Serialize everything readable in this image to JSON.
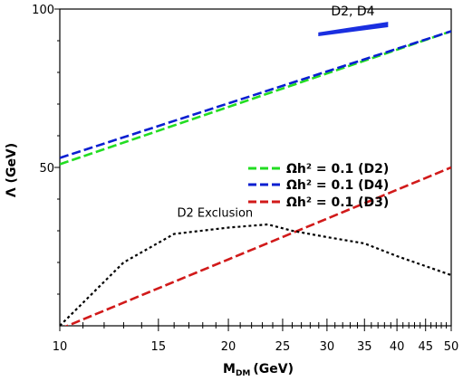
{
  "chart_data": {
    "type": "line",
    "xlabel_main": "M",
    "xlabel_sub": "DM",
    "xlabel_unit": "(GeV)",
    "ylabel": "Λ (GeV)",
    "xscale": "log",
    "xlim": [
      10,
      50
    ],
    "ylim": [
      0,
      100
    ],
    "xticks_major": [
      10,
      15,
      20,
      25,
      30,
      35,
      40,
      45,
      50
    ],
    "xtick_labels": [
      "10",
      "15",
      "20",
      "25",
      "30",
      "35",
      "40",
      "45",
      "50"
    ],
    "xticks_minor": [
      11,
      12,
      13,
      14,
      16,
      17,
      18,
      19,
      21,
      22,
      23,
      24,
      26,
      27,
      28,
      29,
      31,
      32,
      33,
      34,
      36,
      37,
      38,
      39,
      41,
      42,
      43,
      44,
      46,
      47,
      48,
      49
    ],
    "yticks_major": [
      50,
      100
    ],
    "ytick_labels": [
      "50",
      "100"
    ],
    "yticks_minor": [
      10,
      20,
      30,
      40,
      60,
      70,
      80,
      90
    ],
    "series": [
      {
        "key": "d2",
        "name": "Ωh² = 0.1 (D2)",
        "color": "#22dd22",
        "style": "dashed",
        "x": [
          10,
          50
        ],
        "y": [
          51,
          93
        ]
      },
      {
        "key": "d4",
        "name": "Ωh² = 0.1 (D4)",
        "color": "#0a1fd1",
        "style": "dashed",
        "x": [
          10,
          50
        ],
        "y": [
          53,
          93
        ]
      },
      {
        "key": "d3",
        "name": "Ωh² = 0.1 (D3)",
        "color": "#d11a1a",
        "style": "dashed",
        "x": [
          10,
          50
        ],
        "y": [
          -1,
          50
        ]
      },
      {
        "key": "excl",
        "color": "#000000",
        "style": "dotted",
        "x": [
          10,
          13,
          16,
          20,
          23.5,
          26,
          30,
          35,
          40,
          50
        ],
        "y": [
          0,
          20,
          29,
          31,
          32,
          30,
          28,
          26,
          22,
          16
        ]
      }
    ],
    "region": {
      "key": "d2d4",
      "color": "#1a2fe0",
      "x": [
        29,
        38.5,
        38.5,
        29
      ],
      "y": [
        92.5,
        95.8,
        94.4,
        91.6
      ]
    },
    "annotations": [
      {
        "key": "region_label",
        "text": "D2, D4",
        "x": 30.5,
        "y": 98
      },
      {
        "key": "exclusion_label",
        "text": "D2 Exclusion",
        "x": 16.2,
        "y": 34.5
      }
    ],
    "legend_position": "center-right",
    "grid": false
  }
}
